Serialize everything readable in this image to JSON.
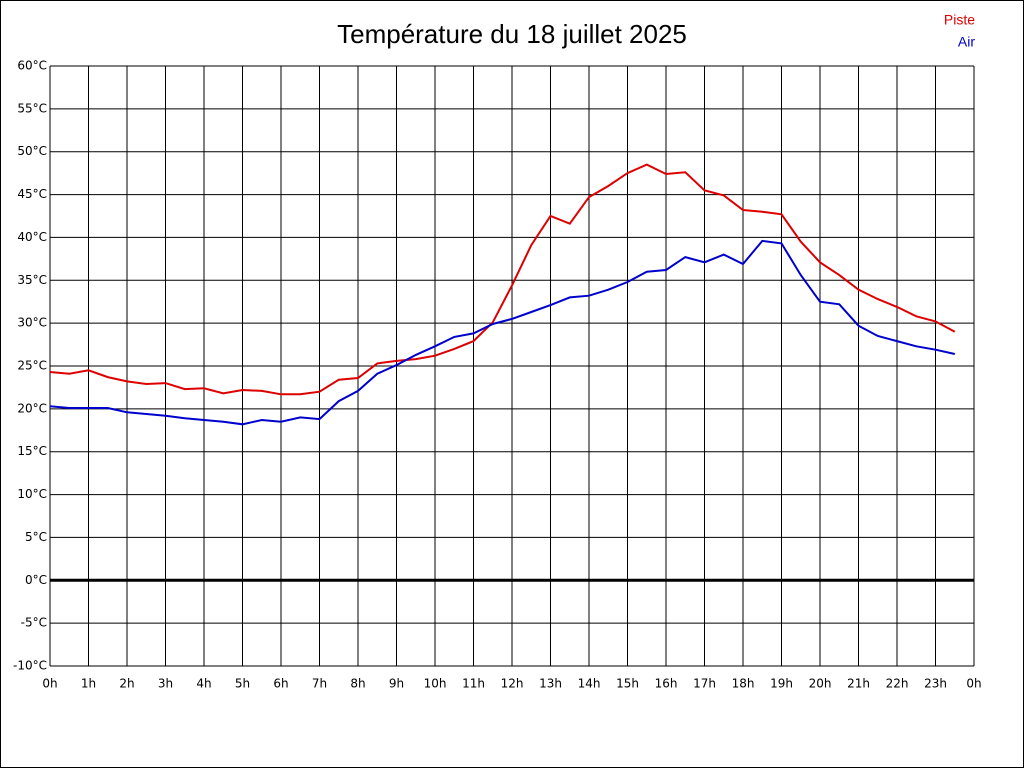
{
  "chart_data": {
    "type": "line",
    "title": "Température du 18 juillet 2025",
    "x": [
      0,
      0.5,
      1,
      1.5,
      2,
      2.5,
      3,
      3.5,
      4,
      4.5,
      5,
      5.5,
      6,
      6.5,
      7,
      7.5,
      8,
      8.5,
      9,
      9.5,
      10,
      10.5,
      11,
      11.5,
      12,
      12.5,
      13,
      13.5,
      14,
      14.5,
      15,
      15.5,
      16,
      16.5,
      17,
      17.5,
      18,
      18.5,
      19,
      19.5,
      20,
      20.5,
      21,
      21.5,
      22,
      22.5,
      23,
      23.5
    ],
    "series": [
      {
        "name": "Piste",
        "color": "#dd0000",
        "values": [
          24.3,
          24.1,
          24.5,
          23.7,
          23.2,
          22.9,
          23.0,
          22.3,
          22.4,
          21.8,
          22.2,
          22.1,
          21.7,
          21.7,
          22.0,
          23.4,
          23.6,
          25.3,
          25.6,
          25.8,
          26.2,
          27.0,
          27.9,
          30.1,
          34.4,
          39.1,
          42.5,
          41.6,
          44.7,
          46.0,
          47.5,
          48.5,
          47.4,
          47.6,
          45.5,
          44.9,
          43.2,
          43.0,
          42.7,
          39.5,
          37.1,
          35.6,
          33.9,
          32.8,
          31.9,
          30.8,
          30.2,
          29.0
        ]
      },
      {
        "name": "Air",
        "color": "#0000cc",
        "values": [
          20.3,
          20.1,
          20.1,
          20.1,
          19.6,
          19.4,
          19.2,
          18.9,
          18.7,
          18.5,
          18.2,
          18.7,
          18.5,
          19.0,
          18.8,
          20.9,
          22.1,
          24.1,
          25.1,
          26.3,
          27.3,
          28.4,
          28.8,
          29.9,
          30.5,
          31.3,
          32.1,
          33.0,
          33.2,
          33.9,
          34.8,
          36.0,
          36.2,
          37.7,
          37.1,
          38.0,
          36.9,
          39.6,
          39.3,
          35.6,
          32.5,
          32.2,
          29.7,
          28.5,
          27.9,
          27.3,
          26.9,
          26.4
        ]
      }
    ],
    "xlim": [
      0,
      24
    ],
    "xticks": [
      {
        "value": 0,
        "label": "0h"
      },
      {
        "value": 1,
        "label": "1h"
      },
      {
        "value": 2,
        "label": "2h"
      },
      {
        "value": 3,
        "label": "3h"
      },
      {
        "value": 4,
        "label": "4h"
      },
      {
        "value": 5,
        "label": "5h"
      },
      {
        "value": 6,
        "label": "6h"
      },
      {
        "value": 7,
        "label": "7h"
      },
      {
        "value": 8,
        "label": "8h"
      },
      {
        "value": 9,
        "label": "9h"
      },
      {
        "value": 10,
        "label": "10h"
      },
      {
        "value": 11,
        "label": "11h"
      },
      {
        "value": 12,
        "label": "12h"
      },
      {
        "value": 13,
        "label": "13h"
      },
      {
        "value": 14,
        "label": "14h"
      },
      {
        "value": 15,
        "label": "15h"
      },
      {
        "value": 16,
        "label": "16h"
      },
      {
        "value": 17,
        "label": "17h"
      },
      {
        "value": 18,
        "label": "18h"
      },
      {
        "value": 19,
        "label": "19h"
      },
      {
        "value": 20,
        "label": "20h"
      },
      {
        "value": 21,
        "label": "21h"
      },
      {
        "value": 22,
        "label": "22h"
      },
      {
        "value": 23,
        "label": "23h"
      },
      {
        "value": 24,
        "label": "0h"
      }
    ],
    "ylim": [
      -10,
      60
    ],
    "yticks": [
      {
        "value": -10,
        "label": "-10°C"
      },
      {
        "value": -5,
        "label": "-5°C"
      },
      {
        "value": 0,
        "label": "0°C"
      },
      {
        "value": 5,
        "label": "5°C"
      },
      {
        "value": 10,
        "label": "10°C"
      },
      {
        "value": 15,
        "label": "15°C"
      },
      {
        "value": 20,
        "label": "20°C"
      },
      {
        "value": 25,
        "label": "25°C"
      },
      {
        "value": 30,
        "label": "30°C"
      },
      {
        "value": 35,
        "label": "35°C"
      },
      {
        "value": 40,
        "label": "40°C"
      },
      {
        "value": 45,
        "label": "45°C"
      },
      {
        "value": 50,
        "label": "50°C"
      },
      {
        "value": 55,
        "label": "55°C"
      },
      {
        "value": 60,
        "label": "60°C"
      }
    ],
    "grid": true,
    "legend": "top-right"
  }
}
